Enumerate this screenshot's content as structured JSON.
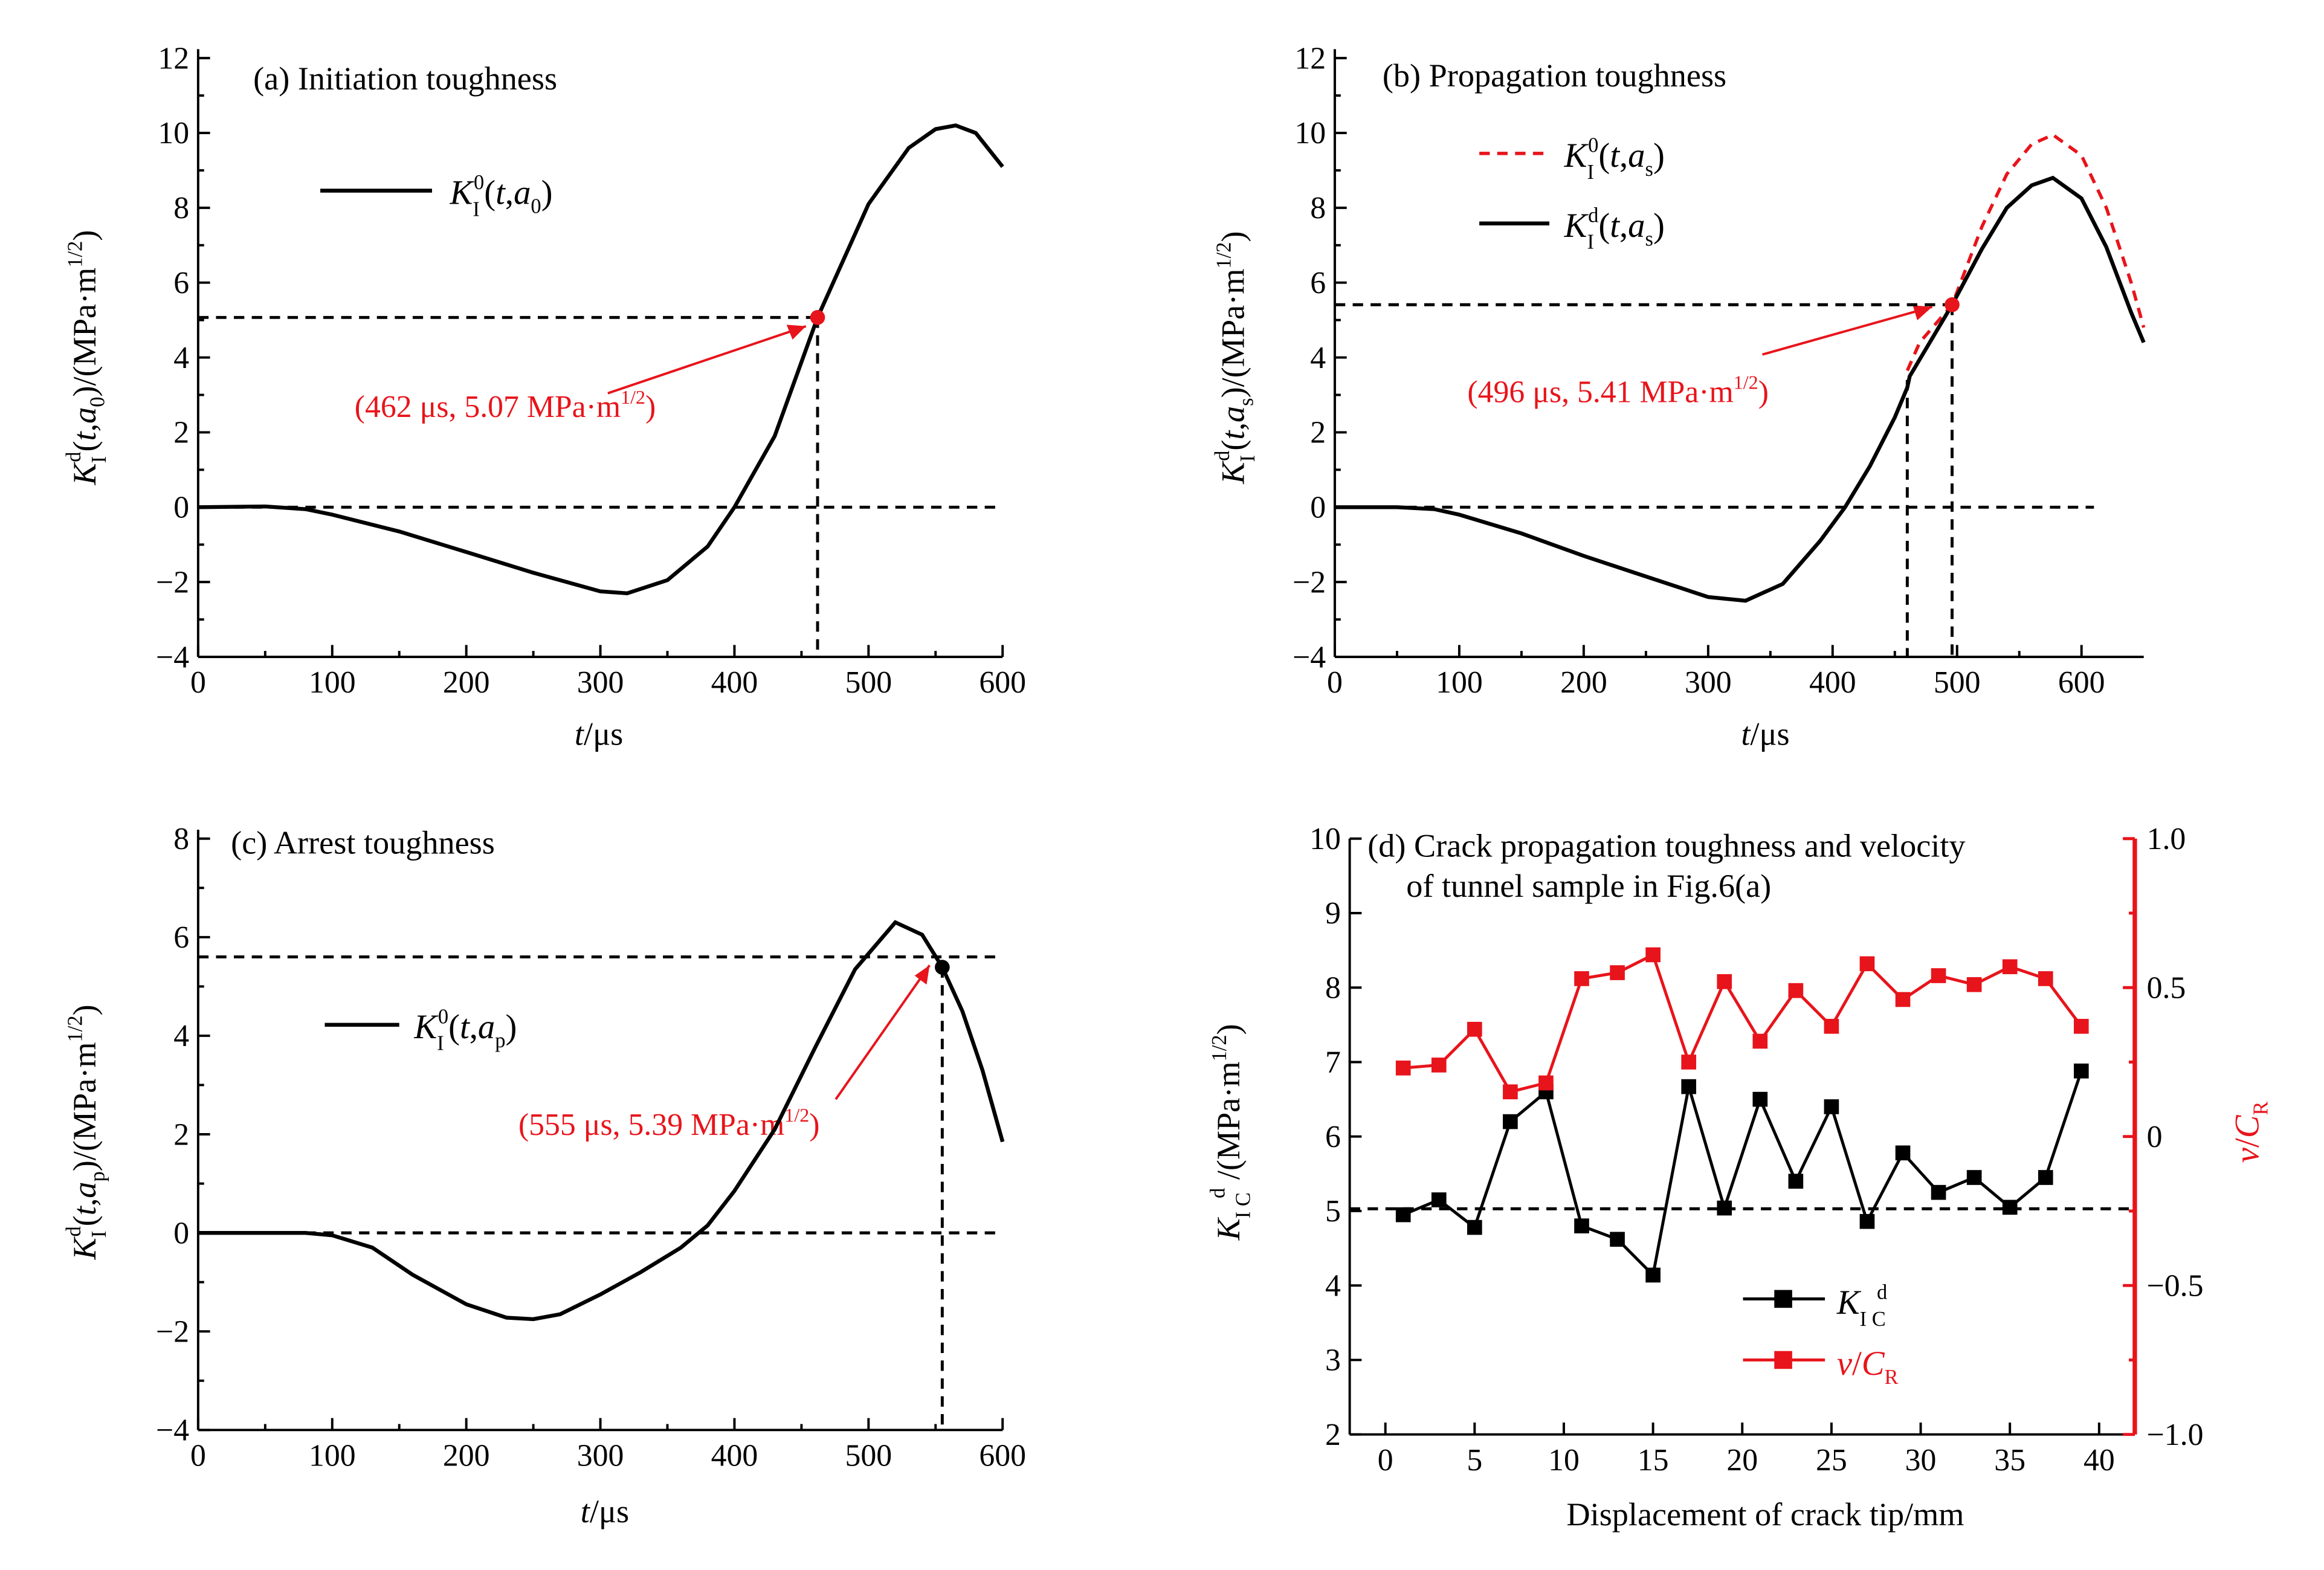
{
  "colors": {
    "black": "#000000",
    "red": "#e8141b"
  },
  "panels": [
    {
      "title": "(a) Initiation toughness",
      "xlabel": "t/μs",
      "ylabel": "K_I^d(t,a_0)/(MPa·m^1/2)",
      "legend": [
        "K_I^0(t,a_0)"
      ],
      "annotation": "(462 μs, 5.07 MPa·m^1/2)",
      "xticks": [
        "0",
        "100",
        "200",
        "300",
        "400",
        "500",
        "600"
      ],
      "yticks": [
        "−4",
        "−2",
        "0",
        "2",
        "4",
        "6",
        "8",
        "10",
        "12"
      ]
    },
    {
      "title": "(b) Propagation toughness",
      "xlabel": "t/μs",
      "ylabel": "K_I^d(t,a_s)/(MPa·m^1/2)",
      "legend": [
        "K_I^0(t,a_s)",
        "K_I^d(t,a_s)"
      ],
      "annotation": "(496 μs, 5.41 MPa·m^1/2)",
      "xticks": [
        "0",
        "100",
        "200",
        "300",
        "400",
        "500",
        "600"
      ],
      "yticks": [
        "−4",
        "−2",
        "0",
        "2",
        "4",
        "6",
        "8",
        "10",
        "12"
      ]
    },
    {
      "title": "(c) Arrest toughness",
      "xlabel": "t/μs",
      "ylabel": "K_I^d(t,a_p)/(MPa·m^1/2)",
      "legend": [
        "K_I^0(t,a_p)"
      ],
      "annotation": "(555 μs, 5.39 MPa·m^1/2)",
      "xticks": [
        "0",
        "100",
        "200",
        "300",
        "400",
        "500",
        "600"
      ],
      "yticks": [
        "−4",
        "−2",
        "0",
        "2",
        "4",
        "6",
        "8"
      ]
    },
    {
      "title_line1": "(d) Crack propagation toughness and velocity",
      "title_line2": "of tunnel sample in Fig.6(a)",
      "xlabel": "Displacement of crack tip/mm",
      "ylabel": "K_IC^d /(MPa·m^1/2)",
      "ylabel_right": "v/C_R",
      "legend": [
        "K_IC^d",
        "v/C_R"
      ],
      "xticks": [
        "0",
        "5",
        "10",
        "15",
        "20",
        "25",
        "30",
        "35",
        "40"
      ],
      "yticks": [
        "2",
        "3",
        "4",
        "5",
        "6",
        "7",
        "8",
        "9",
        "10"
      ],
      "yticks_right": [
        "−1.0",
        "−0.5",
        "0",
        "0.5",
        "1.0"
      ]
    }
  ],
  "chart_data": [
    {
      "type": "line",
      "title": "(a) Initiation toughness",
      "xlabel": "t/μs",
      "ylabel": "K_I^d(t,a_0)/(MPa·m^1/2)",
      "xlim": [
        0,
        600
      ],
      "ylim": [
        -4,
        12
      ],
      "grid": false,
      "legend_position": "upper-left",
      "series": [
        {
          "name": "K_I^0(t,a_0)",
          "style": "solid-black",
          "x": [
            0,
            50,
            80,
            100,
            150,
            200,
            250,
            300,
            320,
            350,
            380,
            400,
            430,
            462,
            500,
            530,
            550,
            565,
            580,
            600
          ],
          "y": [
            0,
            0.02,
            -0.05,
            -0.2,
            -0.65,
            -1.2,
            -1.75,
            -2.25,
            -2.3,
            -1.95,
            -1.05,
            0,
            1.9,
            5.07,
            8.1,
            9.6,
            10.1,
            10.2,
            10.0,
            9.1
          ]
        }
      ],
      "reference_lines": {
        "horizontal": [
          0,
          5.07
        ],
        "vertical": [
          462
        ]
      },
      "marker": {
        "x": 462,
        "y": 5.07,
        "color": "#e8141b"
      },
      "annotation": "(462 μs, 5.07 MPa·m^1/2)"
    },
    {
      "type": "line",
      "title": "(b) Propagation toughness",
      "xlabel": "t/μs",
      "ylabel": "K_I^d(t,a_s)/(MPa·m^1/2)",
      "xlim": [
        0,
        650
      ],
      "ylim": [
        -4,
        12
      ],
      "grid": false,
      "legend_position": "upper-left",
      "series": [
        {
          "name": "K_I^0(t,a_s)",
          "style": "dashed-red",
          "x": [
            460,
            470,
            496,
            520,
            540,
            560,
            577,
            600,
            620,
            640,
            650
          ],
          "y": [
            3.65,
            4.4,
            5.41,
            7.5,
            8.9,
            9.7,
            9.95,
            9.4,
            8.0,
            6.0,
            4.8
          ]
        },
        {
          "name": "K_I^d(t,a_s)",
          "style": "solid-black",
          "x": [
            0,
            50,
            80,
            100,
            150,
            200,
            250,
            300,
            330,
            360,
            390,
            410,
            430,
            450,
            460,
            462,
            470,
            496,
            520,
            540,
            560,
            577,
            600,
            620,
            640,
            650
          ],
          "y": [
            0,
            0,
            -0.05,
            -0.2,
            -0.7,
            -1.3,
            -1.85,
            -2.4,
            -2.5,
            -2.05,
            -0.9,
            0,
            1.1,
            2.4,
            3.2,
            3.5,
            3.95,
            5.41,
            6.9,
            8.0,
            8.6,
            8.8,
            8.25,
            6.95,
            5.2,
            4.4
          ]
        }
      ],
      "reference_lines": {
        "horizontal": [
          0,
          5.41
        ],
        "vertical": [
          460,
          496
        ]
      },
      "marker": {
        "x": 496,
        "y": 5.41,
        "color": "#e8141b"
      },
      "annotation": "(496 μs, 5.41 MPa·m^1/2)"
    },
    {
      "type": "line",
      "title": "(c) Arrest toughness",
      "xlabel": "t/μs",
      "ylabel": "K_I^d(t,a_p)/(MPa·m^1/2)",
      "xlim": [
        0,
        600
      ],
      "ylim": [
        -4,
        8
      ],
      "grid": false,
      "legend_position": "left",
      "series": [
        {
          "name": "K_I^0(t,a_p)",
          "style": "solid-black",
          "x": [
            0,
            50,
            80,
            100,
            130,
            160,
            200,
            230,
            250,
            270,
            300,
            330,
            360,
            380,
            400,
            430,
            460,
            490,
            520,
            540,
            555,
            570,
            585,
            600
          ],
          "y": [
            0,
            0,
            0,
            -0.05,
            -0.3,
            -0.85,
            -1.45,
            -1.72,
            -1.75,
            -1.65,
            -1.25,
            -0.8,
            -0.3,
            0.15,
            0.85,
            2.1,
            3.75,
            5.35,
            6.3,
            6.05,
            5.39,
            4.5,
            3.3,
            1.85
          ]
        }
      ],
      "reference_lines": {
        "horizontal": [
          0,
          5.6
        ],
        "vertical": [
          555
        ]
      },
      "marker": {
        "x": 555,
        "y": 5.39,
        "color": "#000000"
      },
      "annotation": "(555 μs, 5.39 MPa·m^1/2)"
    },
    {
      "type": "line",
      "title": "(d) Crack propagation toughness and velocity of tunnel sample in Fig.6(a)",
      "xlabel": "Displacement of crack tip/mm",
      "ylabel": "K_IC^d /(MPa·m^1/2)",
      "ylabel_right": "v/C_R",
      "xlim": [
        -2,
        42
      ],
      "ylim": [
        2,
        10
      ],
      "ylim_right": [
        -1,
        1
      ],
      "grid": false,
      "legend_position": "lower-center",
      "x": [
        1,
        3,
        5,
        7,
        9,
        11,
        13,
        15,
        17,
        19,
        21,
        23,
        25,
        27,
        29,
        31,
        33,
        35,
        37,
        39
      ],
      "series": [
        {
          "name": "K_IC^d",
          "axis": "left",
          "color": "#000000",
          "marker": "square",
          "values": [
            4.95,
            5.15,
            4.78,
            6.2,
            6.6,
            4.8,
            4.62,
            4.14,
            6.67,
            5.04,
            6.5,
            5.4,
            6.4,
            4.86,
            5.78,
            5.25,
            5.45,
            5.05,
            5.45,
            6.88
          ]
        },
        {
          "name": "v/C_R",
          "axis": "right",
          "color": "#e8141b",
          "marker": "square",
          "values": [
            0.23,
            0.24,
            0.36,
            0.15,
            0.18,
            0.53,
            0.55,
            0.61,
            0.25,
            0.52,
            0.32,
            0.49,
            0.37,
            0.58,
            0.46,
            0.54,
            0.51,
            0.57,
            0.53,
            0.37
          ]
        }
      ],
      "reference_lines": {
        "horizontal": [
          5.03
        ]
      }
    }
  ]
}
